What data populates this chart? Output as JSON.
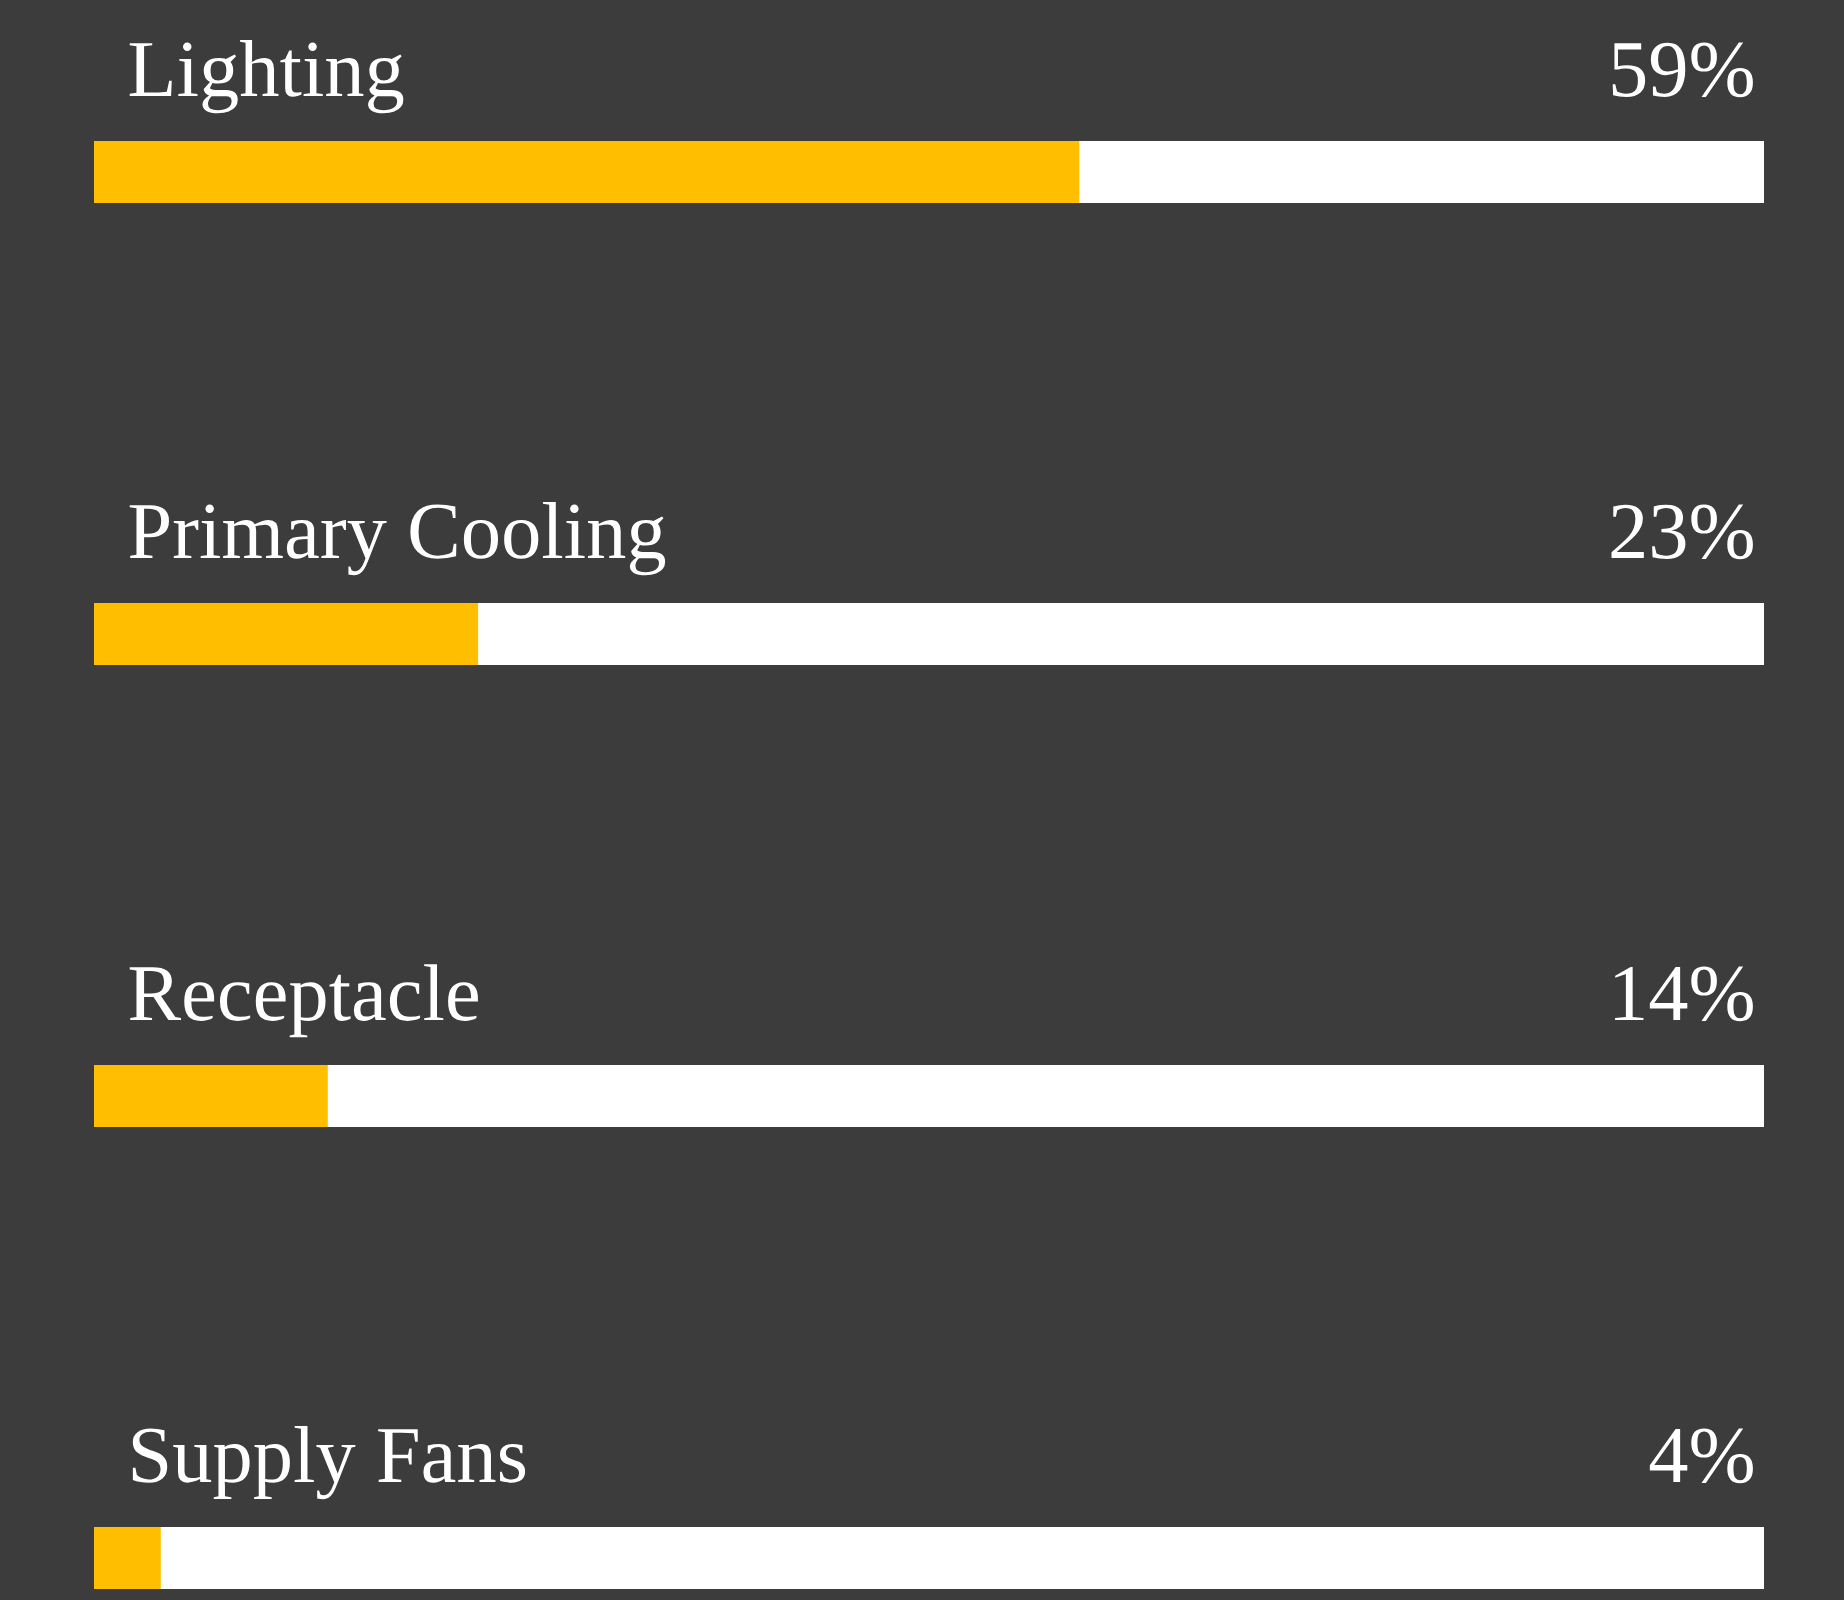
{
  "chart_data": {
    "type": "bar",
    "orientation": "horizontal",
    "categories": [
      "Lighting",
      "Primary Cooling",
      "Receptacle",
      "Supply Fans"
    ],
    "series": [
      {
        "color": "#ffbf00",
        "values": [
          59,
          23,
          14,
          4
        ],
        "value_labels": [
          "59%",
          "23%",
          "14%",
          "4%"
        ]
      }
    ],
    "xlim": [
      0,
      100
    ]
  }
}
